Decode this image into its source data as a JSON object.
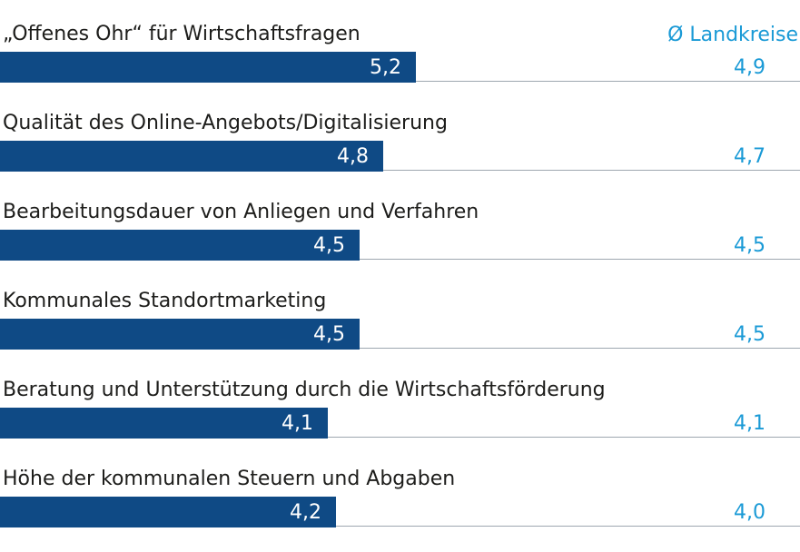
{
  "chart_data": {
    "type": "bar",
    "orientation": "horizontal",
    "avg_header": "Ø Landkreise",
    "categories": [
      "„Offenes Ohr“ für Wirtschaftsfragen",
      "Qualität des Online-Angebots/Digitalisierung",
      "Bearbeitungsdauer von Anliegen und Verfahren",
      "Kommunales Standortmarketing",
      "Beratung und Unterstützung durch die Wirtschaftsförderung",
      "Höhe der kommunalen Steuern und Abgaben"
    ],
    "values": [
      5.2,
      4.8,
      4.5,
      4.5,
      4.1,
      4.2
    ],
    "value_labels": [
      "5,2",
      "4,8",
      "4,5",
      "4,5",
      "4,1",
      "4,2"
    ],
    "averages": [
      "4,9",
      "4,7",
      "4,5",
      "4,5",
      "4,1",
      "4,0"
    ],
    "colors": {
      "bar": "#0f4a85",
      "average": "#1a9ad6",
      "label": "#1d1d1b",
      "rule": "#9ea7b0"
    }
  }
}
